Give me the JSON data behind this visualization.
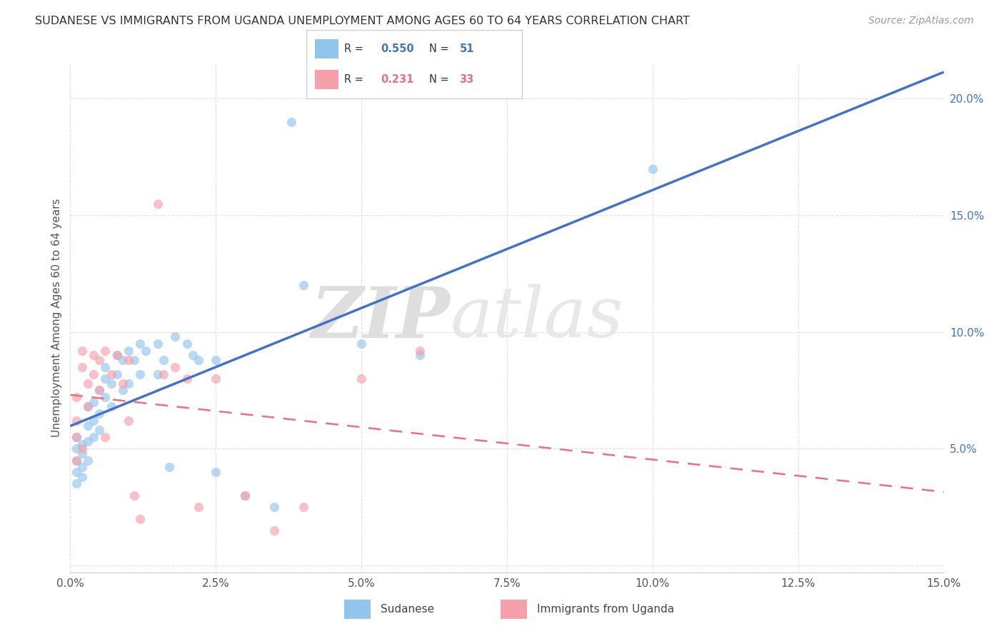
{
  "title": "SUDANESE VS IMMIGRANTS FROM UGANDA UNEMPLOYMENT AMONG AGES 60 TO 64 YEARS CORRELATION CHART",
  "source": "Source: ZipAtlas.com",
  "ylabel": "Unemployment Among Ages 60 to 64 years",
  "xlim": [
    0.0,
    0.15
  ],
  "ylim": [
    -0.003,
    0.215
  ],
  "xtick_vals": [
    0.0,
    0.025,
    0.05,
    0.075,
    0.1,
    0.125,
    0.15
  ],
  "xtick_labels": [
    "0.0%",
    "2.5%",
    "5.0%",
    "7.5%",
    "10.0%",
    "12.5%",
    "15.0%"
  ],
  "ytick_vals": [
    0.05,
    0.1,
    0.15,
    0.2
  ],
  "ytick_labels": [
    "5.0%",
    "10.0%",
    "15.0%",
    "20.0%"
  ],
  "blue_R": 0.55,
  "blue_N": 51,
  "pink_R": 0.231,
  "pink_N": 33,
  "blue_scatter_color": "#92C5EC",
  "pink_scatter_color": "#F5A0AA",
  "blue_line_color": "#4472C4",
  "pink_line_color": "#E87080",
  "grid_color": "#E0E0E0",
  "axis_color": "#555555",
  "right_tick_color": "#4472C4",
  "blue_label": "Sudanese",
  "pink_label": "Immigrants from Uganda",
  "blue_scatter_x": [
    0.001,
    0.001,
    0.001,
    0.001,
    0.001,
    0.002,
    0.002,
    0.002,
    0.002,
    0.003,
    0.003,
    0.003,
    0.003,
    0.004,
    0.004,
    0.004,
    0.005,
    0.005,
    0.005,
    0.006,
    0.006,
    0.006,
    0.007,
    0.007,
    0.008,
    0.008,
    0.009,
    0.009,
    0.01,
    0.01,
    0.011,
    0.012,
    0.012,
    0.013,
    0.015,
    0.015,
    0.016,
    0.017,
    0.018,
    0.02,
    0.021,
    0.022,
    0.025,
    0.025,
    0.03,
    0.035,
    0.04,
    0.05,
    0.06,
    0.1,
    0.038
  ],
  "blue_scatter_y": [
    0.045,
    0.05,
    0.04,
    0.055,
    0.035,
    0.048,
    0.052,
    0.042,
    0.038,
    0.06,
    0.053,
    0.045,
    0.068,
    0.07,
    0.062,
    0.055,
    0.075,
    0.065,
    0.058,
    0.08,
    0.072,
    0.085,
    0.078,
    0.068,
    0.09,
    0.082,
    0.088,
    0.075,
    0.092,
    0.078,
    0.088,
    0.095,
    0.082,
    0.092,
    0.095,
    0.082,
    0.088,
    0.042,
    0.098,
    0.095,
    0.09,
    0.088,
    0.088,
    0.04,
    0.03,
    0.025,
    0.12,
    0.095,
    0.09,
    0.17,
    0.19
  ],
  "pink_scatter_x": [
    0.001,
    0.001,
    0.001,
    0.001,
    0.002,
    0.002,
    0.002,
    0.003,
    0.003,
    0.004,
    0.004,
    0.005,
    0.005,
    0.006,
    0.006,
    0.007,
    0.008,
    0.009,
    0.01,
    0.01,
    0.011,
    0.012,
    0.015,
    0.016,
    0.018,
    0.02,
    0.022,
    0.025,
    0.03,
    0.035,
    0.04,
    0.05,
    0.06
  ],
  "pink_scatter_y": [
    0.055,
    0.072,
    0.062,
    0.045,
    0.085,
    0.092,
    0.05,
    0.078,
    0.068,
    0.09,
    0.082,
    0.088,
    0.075,
    0.092,
    0.055,
    0.082,
    0.09,
    0.078,
    0.088,
    0.062,
    0.03,
    0.02,
    0.155,
    0.082,
    0.085,
    0.08,
    0.025,
    0.08,
    0.03,
    0.015,
    0.025,
    0.08,
    0.092
  ]
}
